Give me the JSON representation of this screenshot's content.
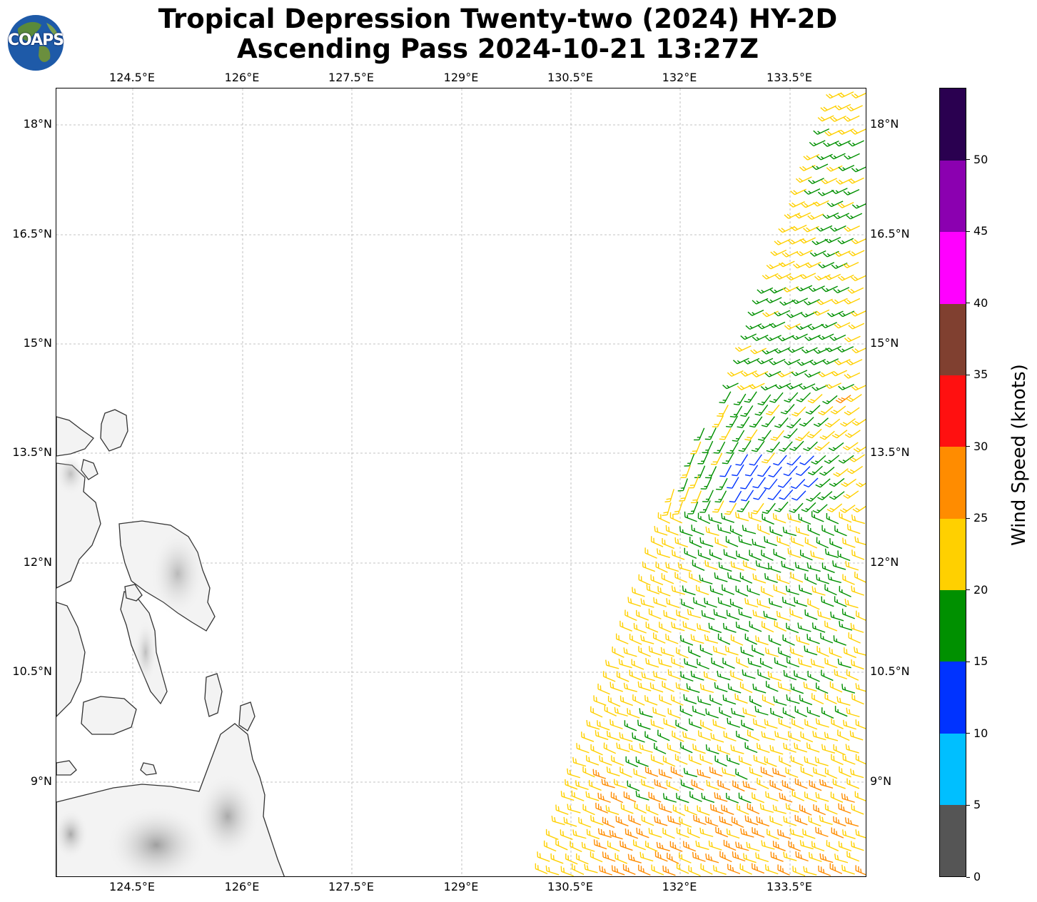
{
  "title_line1": "Tropical Depression Twenty-two (2024) HY-2D",
  "title_line2": "Ascending Pass 2024-10-21 13:27Z",
  "logo_text": "COAPS",
  "colors": {
    "land": "#f3f3f3",
    "coast": "#333333",
    "grid": "#b0b0b0"
  },
  "map": {
    "lon_labels": [
      "124.5°E",
      "126°E",
      "127.5°E",
      "129°E",
      "130.5°E",
      "132°E",
      "133.5°E"
    ],
    "lat_labels": [
      "18°N",
      "16.5°N",
      "15°N",
      "13.5°N",
      "12°N",
      "10.5°N",
      "9°N"
    ]
  },
  "colorbar": {
    "title": "Wind Speed (knots)",
    "tick_labels": [
      "0",
      "5",
      "10",
      "15",
      "20",
      "25",
      "30",
      "35",
      "40",
      "45",
      "50"
    ],
    "colors": [
      "#555555",
      "#00bfff",
      "#0033ff",
      "#009000",
      "#ffd000",
      "#ff8c00",
      "#ff1010",
      "#804030",
      "#ff00ff",
      "#8b00b0",
      "#2a0050"
    ]
  }
}
